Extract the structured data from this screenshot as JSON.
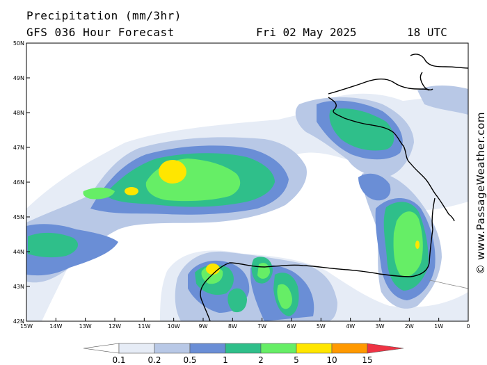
{
  "header": {
    "title": "Precipitation (mm/3hr)",
    "subtitle": "GFS 036 Hour Forecast",
    "date": "Fri 02 May 2025",
    "time": "18 UTC"
  },
  "credit": "© www.PassageWeather.com",
  "map": {
    "lon_range": [
      -15,
      0
    ],
    "lat_range": [
      42,
      50
    ],
    "lon_ticks": [
      "15W",
      "14W",
      "13W",
      "12W",
      "11W",
      "10W",
      "9W",
      "8W",
      "7W",
      "6W",
      "5W",
      "4W",
      "3W",
      "2W",
      "1W",
      "0"
    ],
    "lat_ticks": [
      "42N",
      "43N",
      "44N",
      "45N",
      "46N",
      "47N",
      "48N",
      "49N",
      "50N"
    ]
  },
  "legend": {
    "labels": [
      "0.1",
      "0.2",
      "0.5",
      "1",
      "2",
      "5",
      "10",
      "15"
    ],
    "colors": [
      "#ffffff",
      "#e6ecf6",
      "#b8c8e6",
      "#6a8ed6",
      "#2fbf8a",
      "#66ee66",
      "#ffe600",
      "#ff9900",
      "#ee3344"
    ]
  }
}
